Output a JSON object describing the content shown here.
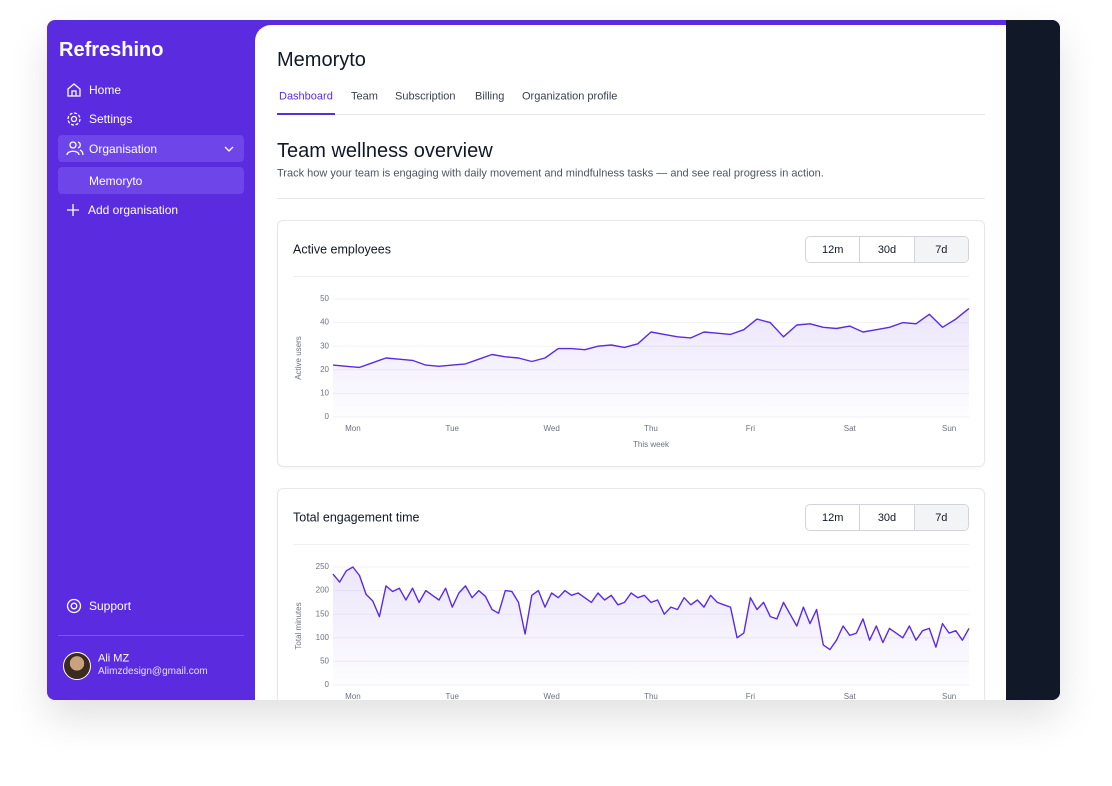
{
  "sidebar": {
    "brand": "Refreshino",
    "nav": [
      "Home",
      "Settings",
      "Organisation"
    ],
    "sub_item": "Memoryto",
    "add_item": "Add organisation",
    "support": "Support",
    "user": {
      "name": "Ali MZ",
      "email": "Alimzdesign@gmail.com"
    }
  },
  "header": {
    "title": "Memoryto",
    "tabs": [
      {
        "label": "Dashboard",
        "active": true
      },
      {
        "label": "Team",
        "active": false
      },
      {
        "label": "Subscription",
        "active": false
      },
      {
        "label": "Billing",
        "active": false
      },
      {
        "label": "Organization profile",
        "active": false
      }
    ]
  },
  "page": {
    "heading": "Team wellness overview",
    "subtitle": "Track how your team is engaging with daily movement and mindfulness tasks — and see real progress in action."
  },
  "chart_data": [
    {
      "type": "line",
      "title": "Active employees",
      "range_options": [
        {
          "label": "12m",
          "selected": false
        },
        {
          "label": "30d",
          "selected": false
        },
        {
          "label": "7d",
          "selected": true
        }
      ],
      "x_label": "This week",
      "y_label": "Active users",
      "color": "#5b2be0",
      "grid": true,
      "x": [
        0,
        1,
        2,
        3,
        4,
        5,
        6,
        7,
        8,
        9,
        10,
        11,
        12,
        13,
        14,
        15,
        16,
        17,
        18,
        19,
        20,
        21,
        22,
        23,
        24,
        25,
        26,
        27,
        28,
        29,
        30,
        31,
        32,
        33,
        34,
        35,
        36,
        37,
        38,
        39,
        40,
        41,
        42,
        43,
        44,
        45,
        46,
        47,
        48
      ],
      "values": [
        22,
        21.5,
        21,
        23,
        25,
        24.5,
        24,
        22,
        21.5,
        22,
        22.5,
        24.5,
        26.5,
        25.5,
        25,
        23.5,
        25,
        29,
        29,
        28.5,
        30,
        30.5,
        29.5,
        31,
        36,
        35,
        34,
        33.5,
        36,
        35.5,
        35,
        37,
        41.5,
        40,
        34,
        39,
        39.5,
        38,
        37.5,
        38.5,
        36,
        37,
        38,
        40,
        39.5,
        43.5,
        38,
        41.5,
        46
      ],
      "xlim": [
        0,
        48
      ],
      "xticks": [
        {
          "value": 1.5,
          "label": "Mon"
        },
        {
          "value": 9,
          "label": "Tue"
        },
        {
          "value": 16.5,
          "label": "Wed"
        },
        {
          "value": 24,
          "label": "Thu"
        },
        {
          "value": 31.5,
          "label": "Fri"
        },
        {
          "value": 39,
          "label": "Sat"
        },
        {
          "value": 46.5,
          "label": "Sun"
        }
      ],
      "ylim": [
        0,
        50
      ],
      "yticks": [
        0,
        10,
        20,
        30,
        40,
        50
      ]
    },
    {
      "type": "line",
      "title": "Total engagement time",
      "range_options": [
        {
          "label": "12m",
          "selected": false
        },
        {
          "label": "30d",
          "selected": false
        },
        {
          "label": "7d",
          "selected": true
        }
      ],
      "y_label": "Total minutes",
      "color": "#5b2be0",
      "grid": true,
      "x": [
        0,
        1,
        2,
        3,
        4,
        5,
        6,
        7,
        8,
        9,
        10,
        11,
        12,
        13,
        14,
        15,
        16,
        17,
        18,
        19,
        20,
        21,
        22,
        23,
        24,
        25,
        26,
        27,
        28,
        29,
        30,
        31,
        32,
        33,
        34,
        35,
        36,
        37,
        38,
        39,
        40,
        41,
        42,
        43,
        44,
        45,
        46,
        47,
        48,
        49,
        50,
        51,
        52,
        53,
        54,
        55,
        56,
        57,
        58,
        59,
        60,
        61,
        62,
        63,
        64,
        65,
        66,
        67,
        68,
        69,
        70,
        71,
        72,
        73,
        74,
        75,
        76,
        77,
        78,
        79,
        80,
        81,
        82,
        83,
        84,
        85,
        86,
        87,
        88,
        89,
        90,
        91,
        92,
        93,
        94,
        95,
        96
      ],
      "values": [
        235,
        218,
        242,
        250,
        232,
        192,
        178,
        145,
        210,
        198,
        205,
        180,
        205,
        175,
        200,
        190,
        180,
        205,
        165,
        195,
        210,
        185,
        200,
        188,
        160,
        152,
        200,
        198,
        175,
        108,
        190,
        200,
        165,
        195,
        185,
        200,
        190,
        195,
        185,
        175,
        195,
        180,
        190,
        170,
        175,
        195,
        185,
        190,
        175,
        180,
        150,
        165,
        160,
        185,
        170,
        180,
        165,
        190,
        175,
        170,
        165,
        100,
        110,
        185,
        160,
        175,
        145,
        140,
        175,
        150,
        125,
        165,
        130,
        160,
        85,
        75,
        95,
        125,
        105,
        110,
        140,
        95,
        125,
        90,
        120,
        110,
        100,
        125,
        95,
        115,
        120,
        80,
        130,
        110,
        115,
        95,
        120
      ],
      "xlim": [
        0,
        96
      ],
      "xticks": [
        {
          "value": 3,
          "label": "Mon"
        },
        {
          "value": 18,
          "label": "Tue"
        },
        {
          "value": 33,
          "label": "Wed"
        },
        {
          "value": 48,
          "label": "Thu"
        },
        {
          "value": 63,
          "label": "Fri"
        },
        {
          "value": 78,
          "label": "Sat"
        },
        {
          "value": 93,
          "label": "Sun"
        }
      ],
      "ylim": [
        0,
        250
      ],
      "yticks": [
        0,
        50,
        100,
        150,
        200,
        250
      ]
    }
  ]
}
